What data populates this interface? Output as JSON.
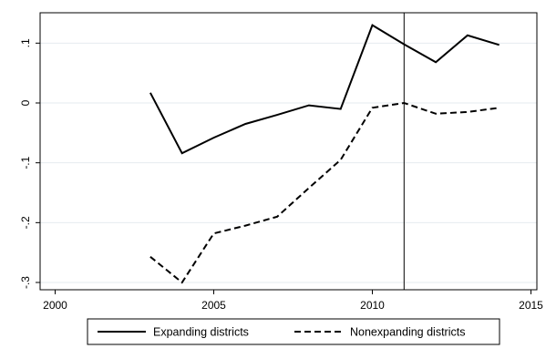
{
  "chart_data": {
    "type": "line",
    "title": "",
    "xlabel": "",
    "ylabel": "",
    "xlim": [
      2000,
      2015
    ],
    "ylim": [
      -0.3,
      0.13
    ],
    "grid": "horizontal",
    "legend_position": "bottom",
    "x_ticks": [
      {
        "value": 2000,
        "label": "2000"
      },
      {
        "value": 2005,
        "label": "2005"
      },
      {
        "value": 2010,
        "label": "2010"
      },
      {
        "value": 2015,
        "label": "2015"
      }
    ],
    "y_ticks": [
      {
        "value": 0.1,
        "label": ".1"
      },
      {
        "value": 0,
        "label": "0"
      },
      {
        "value": -0.1,
        "label": "-.1"
      },
      {
        "value": -0.2,
        "label": "-.2"
      },
      {
        "value": -0.3,
        "label": "-.3"
      }
    ],
    "reference_line_x": 2011,
    "series": [
      {
        "name": "Expanding districts",
        "style": "solid",
        "color": "#000000",
        "x": [
          2003,
          2004,
          2005,
          2006,
          2007,
          2008,
          2009,
          2010,
          2011,
          2012,
          2013,
          2014
        ],
        "values": [
          0.017,
          -0.084,
          -0.058,
          -0.035,
          -0.02,
          -0.004,
          -0.01,
          0.13,
          0.098,
          0.068,
          0.113,
          0.097
        ]
      },
      {
        "name": "Nonexpanding districts",
        "style": "dashed",
        "color": "#000000",
        "x": [
          2003,
          2004,
          2005,
          2006,
          2007,
          2008,
          2009,
          2010,
          2011,
          2012,
          2013,
          2014
        ],
        "values": [
          -0.257,
          -0.3,
          -0.218,
          -0.205,
          -0.19,
          -0.142,
          -0.095,
          -0.008,
          0.0,
          -0.018,
          -0.015,
          -0.008
        ]
      }
    ]
  }
}
